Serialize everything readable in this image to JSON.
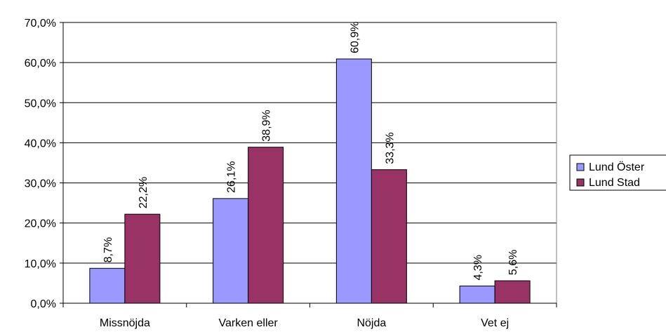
{
  "chart_data": {
    "type": "bar",
    "categories": [
      "Missnöjda",
      "Varken eller",
      "Nöjda",
      "Vet ej"
    ],
    "series": [
      {
        "name": "Lund Öster",
        "values": [
          8.7,
          26.1,
          60.9,
          4.3
        ],
        "labels": [
          "8,7%",
          "26,1%",
          "60,9%",
          "4,3%"
        ],
        "color": "#9999ff"
      },
      {
        "name": "Lund Stad",
        "values": [
          22.2,
          38.9,
          33.3,
          5.6
        ],
        "labels": [
          "22,2%",
          "38,9%",
          "33,3%",
          "5,6%"
        ],
        "color": "#993366"
      }
    ],
    "ylim": [
      0,
      70
    ],
    "yticks": [
      0,
      10,
      20,
      30,
      40,
      50,
      60,
      70
    ],
    "ytick_labels": [
      "0,0%",
      "10,0%",
      "20,0%",
      "30,0%",
      "40,0%",
      "50,0%",
      "60,0%",
      "70,0%"
    ],
    "grid": true,
    "legend_position": "right"
  }
}
